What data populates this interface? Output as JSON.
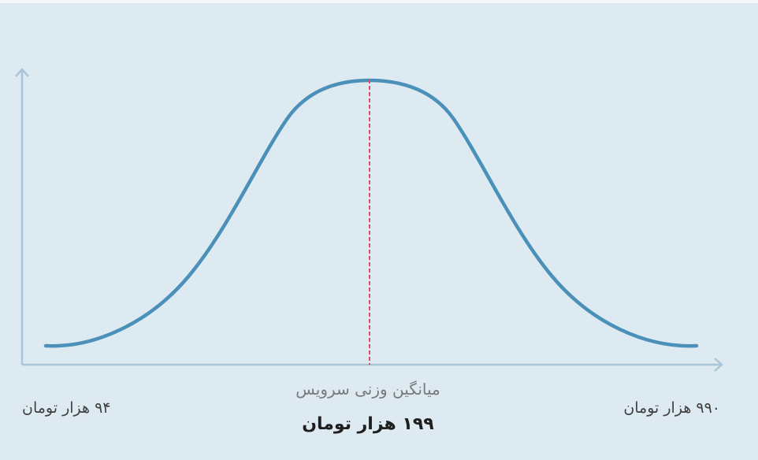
{
  "chart_data": {
    "type": "line",
    "description_type": "distribution",
    "annotations": {
      "min_price": "۹۴ هزار تومان",
      "max_price": "۹۹۰ هزار تومان",
      "mean_caption": "میانگین وزنی سرویس",
      "mean_value": "۱۹۹ هزار تومان"
    },
    "grid": false,
    "colors": {
      "curve": "#4a90b8",
      "mean_line": "#e04a5e",
      "axis": "#a9c6d8",
      "background": "#deeaf1"
    }
  }
}
